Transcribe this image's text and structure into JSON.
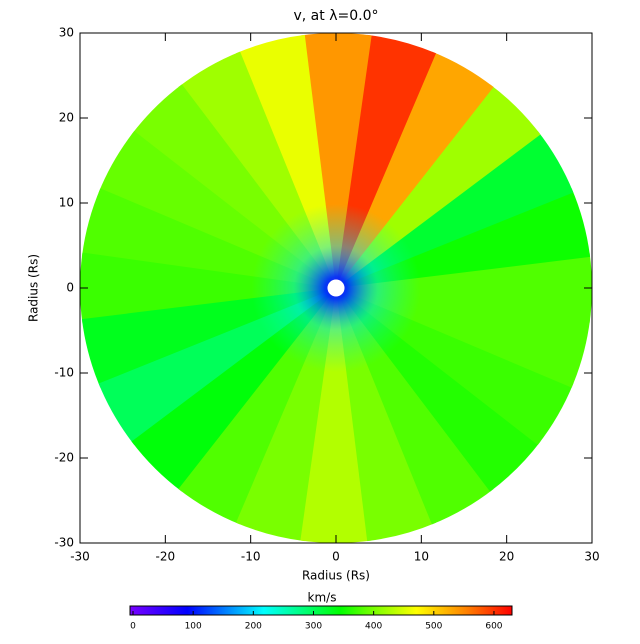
{
  "chart_data": {
    "type": "polar_map",
    "title": "v, at λ=0.0°",
    "xlabel": "Radius (Rs)",
    "ylabel": "Radius (Rs)",
    "xlim": [
      -30,
      30
    ],
    "ylim": [
      -30,
      30
    ],
    "xticks": [
      -30,
      -20,
      -10,
      0,
      10,
      20,
      30
    ],
    "yticks": [
      -30,
      -20,
      -10,
      0,
      10,
      20,
      30
    ],
    "inner_radius": 1,
    "position_angles": [
      0,
      15,
      30,
      45,
      60,
      75,
      90,
      105,
      120,
      135,
      150,
      165,
      180,
      195,
      210,
      225,
      240,
      255,
      270,
      285,
      300,
      315,
      330,
      345
    ],
    "values": [
      380,
      350,
      320,
      420,
      530,
      600,
      540,
      460,
      420,
      400,
      390,
      380,
      370,
      330,
      300,
      340,
      380,
      400,
      430,
      400,
      380,
      360,
      370,
      380
    ],
    "colormap": "rainbow",
    "colorbar": {
      "label": "km/s",
      "clim": [
        -5,
        630
      ],
      "ticks": [
        0,
        100,
        200,
        300,
        400,
        500,
        600
      ]
    }
  }
}
